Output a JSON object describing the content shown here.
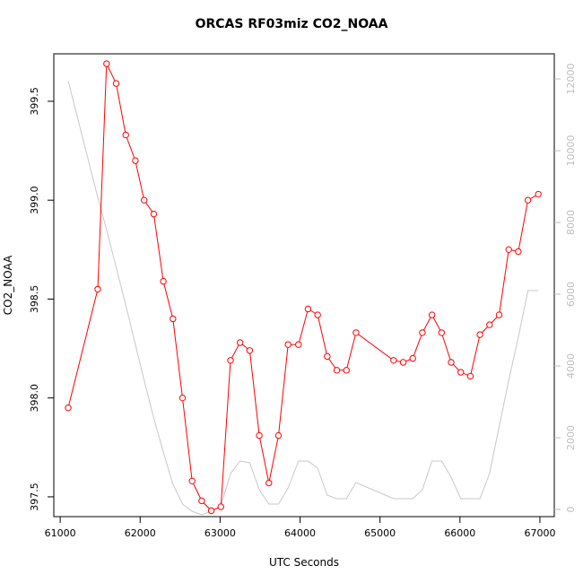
{
  "chart_data": {
    "type": "line",
    "title": "ORCAS RF03miz CO2_NOAA",
    "xlabel": "UTC Seconds",
    "ylabel": "CO2_NOAA",
    "xlim": [
      60920,
      67180
    ],
    "ylim": [
      397.4,
      399.74
    ],
    "y2lim": [
      -200,
      12700
    ],
    "xticks": [
      61000,
      62000,
      63000,
      64000,
      65000,
      66000,
      67000
    ],
    "yticks": [
      397.5,
      398.0,
      398.5,
      399.0,
      399.5
    ],
    "ytick_labels": [
      "397.5",
      "398.0",
      "398.5",
      "399.0",
      "399.5"
    ],
    "y2ticks": [
      0,
      2000,
      4000,
      6000,
      8000,
      10000,
      12000
    ],
    "series": [
      {
        "axis": "left",
        "color": "#ff0000",
        "marker": "open-circle",
        "x": [
          61100,
          61470,
          61580,
          61700,
          61820,
          61940,
          62050,
          62170,
          62290,
          62410,
          62530,
          62650,
          62770,
          62890,
          63010,
          63130,
          63250,
          63370,
          63490,
          63610,
          63730,
          63850,
          63980,
          64100,
          64220,
          64340,
          64460,
          64580,
          64700,
          65170,
          65290,
          65410,
          65530,
          65650,
          65770,
          65890,
          66010,
          66130,
          66250,
          66370,
          66490,
          66610,
          66730,
          66850,
          66980
        ],
        "values": [
          397.95,
          398.55,
          399.69,
          399.59,
          399.33,
          399.2,
          399.0,
          398.93,
          398.59,
          398.4,
          398.0,
          397.58,
          397.48,
          397.43,
          397.45,
          398.19,
          398.28,
          398.24,
          397.81,
          397.57,
          397.81,
          398.27,
          398.27,
          398.45,
          398.42,
          398.21,
          398.14,
          398.14,
          398.33,
          398.19,
          398.18,
          398.2,
          398.33,
          398.42,
          398.33,
          398.18,
          398.13,
          398.11,
          398.32,
          398.37,
          398.42,
          398.75,
          398.74,
          399.0,
          399.03
        ]
      },
      {
        "axis": "right",
        "color": "#c8c8c8",
        "marker": "none",
        "x": [
          61100,
          61470,
          61580,
          61700,
          61820,
          61940,
          62050,
          62170,
          62290,
          62410,
          62530,
          62650,
          62770,
          62890,
          63010,
          63130,
          63250,
          63370,
          63490,
          63610,
          63730,
          63850,
          63980,
          64100,
          64220,
          64340,
          64460,
          64580,
          64700,
          65170,
          65290,
          65410,
          65530,
          65650,
          65770,
          65890,
          66010,
          66130,
          66250,
          66370,
          66490,
          66610,
          66730,
          66850,
          66980
        ],
        "values": [
          11950,
          8700,
          7800,
          6750,
          5700,
          4600,
          3600,
          2550,
          1600,
          700,
          150,
          -50,
          -150,
          -50,
          100,
          1000,
          1350,
          1300,
          550,
          150,
          150,
          600,
          1350,
          1350,
          1150,
          400,
          300,
          300,
          750,
          300,
          300,
          300,
          550,
          1350,
          1350,
          900,
          300,
          300,
          300,
          1000,
          2300,
          3600,
          4800,
          6100,
          6100
        ]
      }
    ]
  }
}
